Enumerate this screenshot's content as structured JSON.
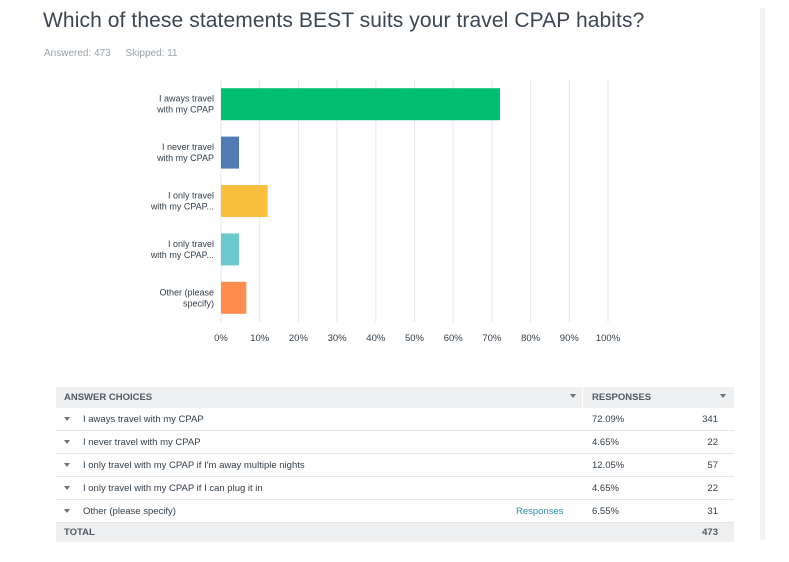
{
  "question": {
    "title": "Which of these statements BEST suits your travel CPAP habits?",
    "answered": "Answered: 473",
    "skipped": "Skipped: 11"
  },
  "chart_data": {
    "type": "bar",
    "orientation": "horizontal",
    "categories": [
      [
        "I aways travel",
        "with my CPAP"
      ],
      [
        "I never travel",
        "with my CPAP"
      ],
      [
        "I only travel",
        "with my CPAP..."
      ],
      [
        "I only travel",
        "with my CPAP..."
      ],
      [
        "Other (please",
        "specify)"
      ]
    ],
    "values": [
      72.09,
      4.65,
      12.05,
      4.65,
      6.55
    ],
    "colors": [
      "#00bf6f",
      "#507cb6",
      "#f9be3b",
      "#6bc8cd",
      "#ff8b4f"
    ],
    "xlim": [
      0,
      100
    ],
    "ticks": [
      0,
      10,
      20,
      30,
      40,
      50,
      60,
      70,
      80,
      90,
      100
    ],
    "tick_labels": [
      "0%",
      "10%",
      "20%",
      "30%",
      "40%",
      "50%",
      "60%",
      "70%",
      "80%",
      "90%",
      "100%"
    ],
    "grid": true,
    "title": "",
    "xlabel": "",
    "ylabel": ""
  },
  "table": {
    "header_answer": "ANSWER CHOICES",
    "header_responses": "RESPONSES",
    "rows": [
      {
        "label": "I aways travel with my CPAP",
        "link": "",
        "pct": "72.09%",
        "count": "341"
      },
      {
        "label": "I never travel with my CPAP",
        "link": "",
        "pct": "4.65%",
        "count": "22"
      },
      {
        "label": "I only travel with my CPAP if I'm away multiple nights",
        "link": "",
        "pct": "12.05%",
        "count": "57"
      },
      {
        "label": "I only travel with my CPAP if I can plug it in",
        "link": "",
        "pct": "4.65%",
        "count": "22"
      },
      {
        "label": "Other (please specify)",
        "link": "Responses",
        "pct": "6.55%",
        "count": "31"
      }
    ],
    "total_label": "TOTAL",
    "total_count": "473"
  },
  "icons": {
    "sort": "chevron-down-icon",
    "row_toggle": "caret-down-icon"
  }
}
